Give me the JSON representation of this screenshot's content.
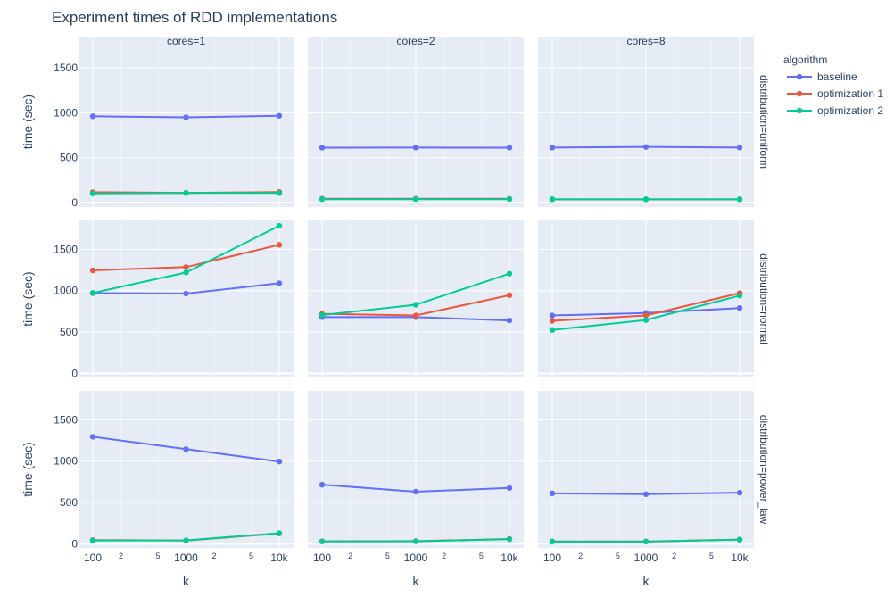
{
  "chart_data": {
    "type": "line",
    "title": "Experiment times of RDD implementations",
    "xlabel": "k",
    "ylabel": "time (sec)",
    "x": [
      100,
      1000,
      10000
    ],
    "x_scale": "log",
    "x_tick_labels": [
      "100",
      "1000",
      "10k"
    ],
    "x_minor_labels": [
      "2",
      "5",
      "2",
      "5"
    ],
    "ylim": [
      -50,
      1850
    ],
    "y_ticks": [
      0,
      500,
      1000,
      1500
    ],
    "grid": true,
    "legend_title": "algorithm",
    "legend_position": "top-right",
    "columns": [
      "cores=1",
      "cores=2",
      "cores=8"
    ],
    "rows": [
      "distribution=uniform",
      "distribution=normal",
      "distribution=power_law"
    ],
    "series_meta": [
      {
        "name": "baseline",
        "color": "#636efa"
      },
      {
        "name": "optimization 1",
        "color": "#ef553b"
      },
      {
        "name": "optimization 2",
        "color": "#00cc96"
      }
    ],
    "panels": [
      {
        "row": "distribution=uniform",
        "col": "cores=1",
        "values": {
          "baseline": [
            962,
            950,
            967
          ],
          "optimization 1": [
            115,
            108,
            117
          ],
          "optimization 2": [
            102,
            106,
            106
          ]
        }
      },
      {
        "row": "distribution=uniform",
        "col": "cores=2",
        "values": {
          "baseline": [
            612,
            613,
            612
          ],
          "optimization 1": [
            42,
            42,
            42
          ],
          "optimization 2": [
            38,
            38,
            38
          ]
        }
      },
      {
        "row": "distribution=uniform",
        "col": "cores=8",
        "values": {
          "baseline": [
            613,
            620,
            613
          ],
          "optimization 1": [
            36,
            36,
            36
          ],
          "optimization 2": [
            36,
            36,
            36
          ]
        }
      },
      {
        "row": "distribution=normal",
        "col": "cores=1",
        "values": {
          "baseline": [
            970,
            965,
            1090
          ],
          "optimization 1": [
            1245,
            1285,
            1555
          ],
          "optimization 2": [
            972,
            1220,
            1785
          ]
        }
      },
      {
        "row": "distribution=normal",
        "col": "cores=2",
        "values": {
          "baseline": [
            680,
            680,
            640
          ],
          "optimization 1": [
            720,
            700,
            945
          ],
          "optimization 2": [
            705,
            830,
            1205
          ]
        }
      },
      {
        "row": "distribution=normal",
        "col": "cores=8",
        "values": {
          "baseline": [
            700,
            730,
            790
          ],
          "optimization 1": [
            635,
            700,
            970
          ],
          "optimization 2": [
            525,
            645,
            940
          ]
        }
      },
      {
        "row": "distribution=power_law",
        "col": "cores=1",
        "values": {
          "baseline": [
            1295,
            1145,
            995
          ],
          "optimization 1": [
            45,
            40,
            125
          ],
          "optimization 2": [
            40,
            42,
            128
          ]
        }
      },
      {
        "row": "distribution=power_law",
        "col": "cores=2",
        "values": {
          "baseline": [
            715,
            630,
            675
          ],
          "optimization 1": [
            30,
            32,
            58
          ],
          "optimization 2": [
            28,
            30,
            55
          ]
        }
      },
      {
        "row": "distribution=power_law",
        "col": "cores=8",
        "values": {
          "baseline": [
            610,
            600,
            618
          ],
          "optimization 1": [
            28,
            28,
            52
          ],
          "optimization 2": [
            26,
            26,
            50
          ]
        }
      }
    ]
  }
}
